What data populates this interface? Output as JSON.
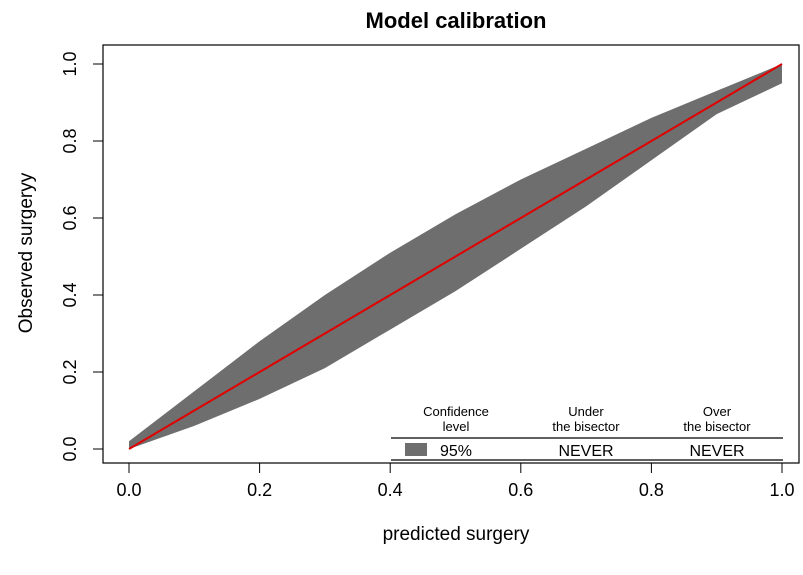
{
  "chart_data": {
    "type": "area",
    "title": "Model calibration",
    "xlabel": "predicted surgery",
    "ylabel": "Observed surgeryy",
    "xlim": [
      0,
      1
    ],
    "ylim": [
      0,
      1
    ],
    "x_ticks": [
      "0.0",
      "0.2",
      "0.4",
      "0.6",
      "0.8",
      "1.0"
    ],
    "y_ticks": [
      "0.0",
      "0.2",
      "0.4",
      "0.6",
      "0.8",
      "1.0"
    ],
    "band": {
      "x": [
        0.0,
        0.1,
        0.2,
        0.3,
        0.4,
        0.5,
        0.6,
        0.7,
        0.8,
        0.9,
        1.0
      ],
      "upper": [
        0.02,
        0.15,
        0.28,
        0.4,
        0.51,
        0.61,
        0.7,
        0.78,
        0.86,
        0.93,
        1.0
      ],
      "lower": [
        0.0,
        0.06,
        0.13,
        0.21,
        0.31,
        0.41,
        0.52,
        0.63,
        0.75,
        0.87,
        0.95
      ],
      "color": "#6e6e6e"
    },
    "bisector": {
      "x": [
        0,
        1
      ],
      "y": [
        0,
        1
      ],
      "color": "#e00000"
    },
    "legend": {
      "headers": [
        "Confidence\nlevel",
        "Under\nthe bisector",
        "Over\nthe bisector"
      ],
      "row": {
        "level": "95%",
        "under": "NEVER",
        "over": "NEVER"
      },
      "swatch_color": "#6e6e6e",
      "placement": "bottom-right"
    }
  }
}
